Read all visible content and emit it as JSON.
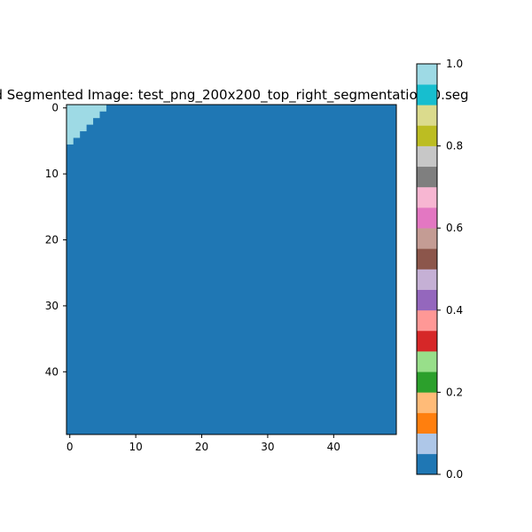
{
  "chart_data": {
    "type": "heatmap",
    "title": "d Segmented Image: test_png_200x200_top_right_segmentation_0.seg",
    "xlabel": "",
    "ylabel": "",
    "grid": false,
    "x_range": [
      -0.5,
      49.5
    ],
    "y_range": [
      -0.5,
      49.5
    ],
    "y_inverted": true,
    "x_ticks": [
      0,
      10,
      20,
      30,
      40
    ],
    "y_ticks": [
      0,
      10,
      20,
      30,
      40
    ],
    "background_value": 0,
    "background_color": "#1f77b4",
    "highlight_value": 1,
    "highlight_color": "#9edae5",
    "highlight_rows": [
      {
        "row": 0,
        "x_start": 0,
        "x_end": 5
      },
      {
        "row": 1,
        "x_start": 0,
        "x_end": 4
      },
      {
        "row": 2,
        "x_start": 0,
        "x_end": 3
      },
      {
        "row": 3,
        "x_start": 0,
        "x_end": 2
      },
      {
        "row": 4,
        "x_start": 0,
        "x_end": 1
      },
      {
        "row": 5,
        "x_start": 0,
        "x_end": 0
      }
    ],
    "colorbar": {
      "colormap": "tab20",
      "range": [
        0,
        1
      ],
      "ticks": [
        "0.0",
        "0.2",
        "0.4",
        "0.6",
        "0.8",
        "1.0"
      ],
      "colors": [
        "#1f77b4",
        "#aec7e8",
        "#ff7f0e",
        "#ffbb78",
        "#2ca02c",
        "#98df8a",
        "#d62728",
        "#ff9896",
        "#9467bd",
        "#c5b0d5",
        "#8c564b",
        "#c49c94",
        "#e377c2",
        "#f7b6d2",
        "#7f7f7f",
        "#c7c7c7",
        "#bcbd22",
        "#dbdb8d",
        "#17becf",
        "#9edae5"
      ]
    }
  }
}
